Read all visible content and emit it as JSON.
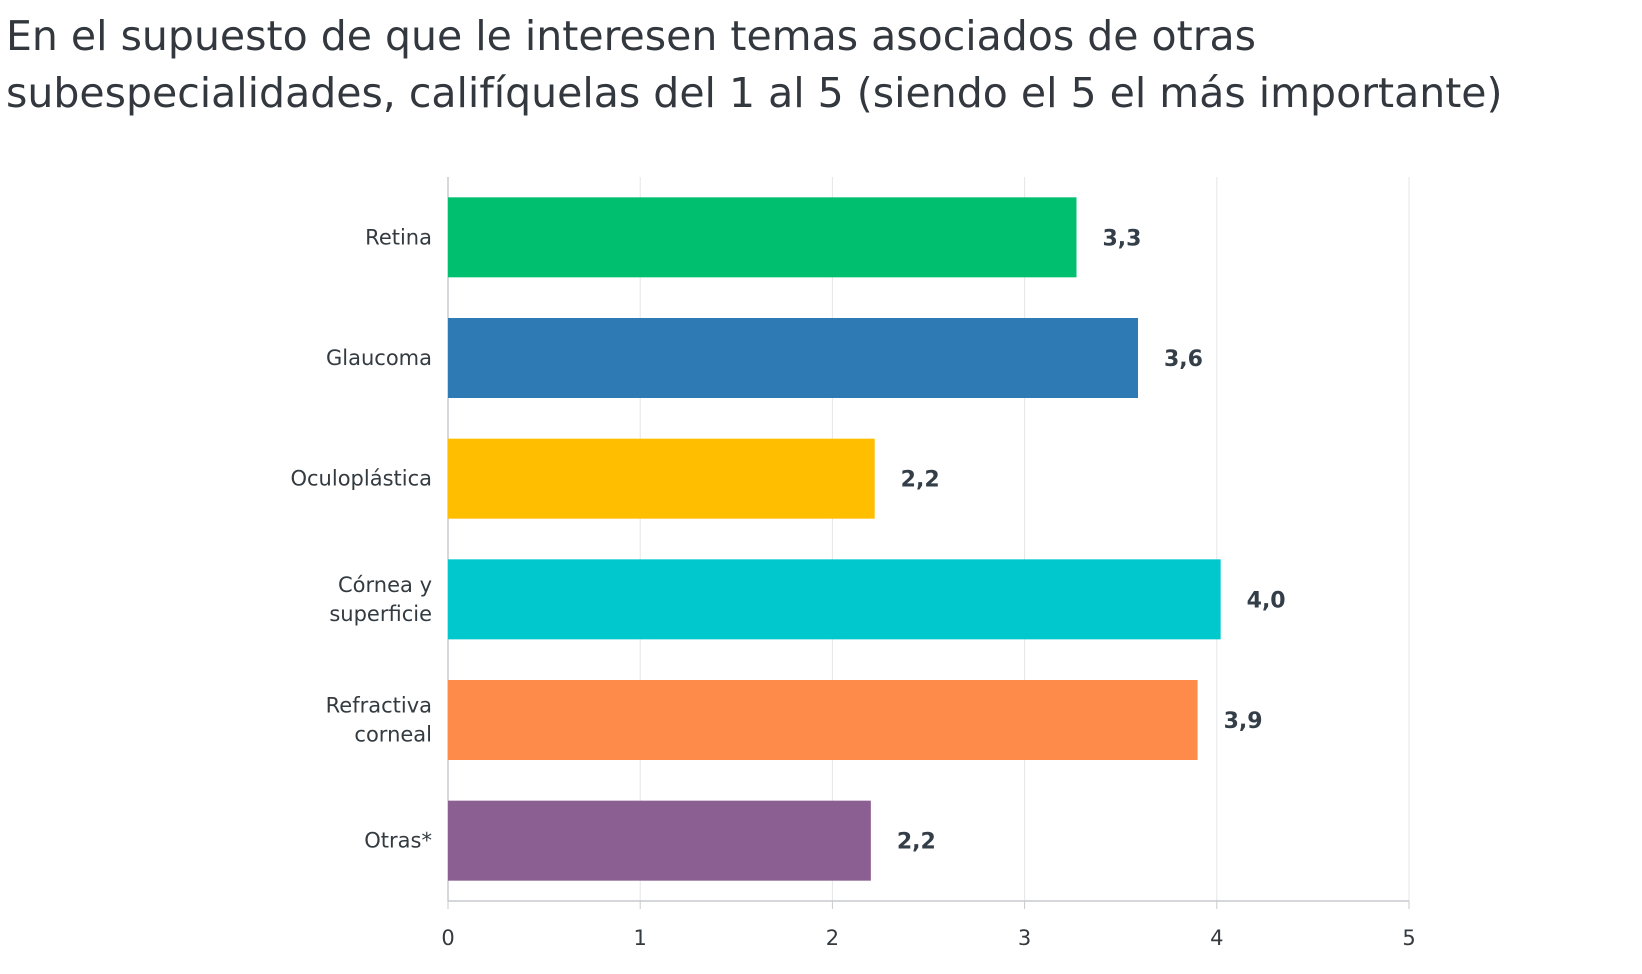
{
  "chart_data": {
    "type": "bar",
    "orientation": "horizontal",
    "title": "En el supuesto de que le interesen temas asociados de otras\nsubespecialidades, califíquelas del 1 al 5 (siendo el 5 el más importante)",
    "categories": [
      "Retina",
      "Glaucoma",
      "Oculoplástica",
      "Córnea y\nsuperficie",
      "Refractiva\ncorneal",
      "Otras*"
    ],
    "values": [
      3.27,
      3.59,
      2.22,
      4.02,
      3.9,
      2.2
    ],
    "value_labels": [
      "3,3",
      "3,6",
      "2,2",
      "4,0",
      "3,9",
      "2,2"
    ],
    "colors": [
      "#00bf6f",
      "#2d7ab5",
      "#ffbf00",
      "#00c8cc",
      "#ff8b4a",
      "#8b5f92"
    ],
    "xticks": [
      "0",
      "1",
      "2",
      "3",
      "4",
      "5"
    ],
    "xlim": [
      0,
      5
    ],
    "xlabel": "",
    "ylabel": "",
    "grid": "vertical",
    "legend": "none"
  }
}
